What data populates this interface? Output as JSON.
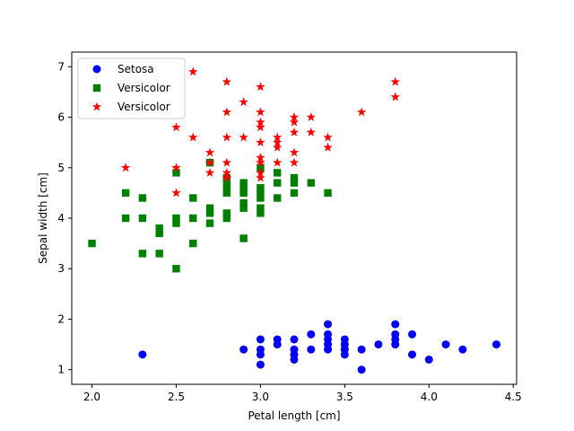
{
  "chart_data": {
    "type": "scatter",
    "xlabel": "Petal length [cm]",
    "ylabel": "Sepal width [cm]",
    "xlim": [
      1.88,
      4.52
    ],
    "ylim": [
      0.71,
      7.29
    ],
    "xticks": [
      2.0,
      2.5,
      3.0,
      3.5,
      4.0,
      4.5
    ],
    "xtick_labels": [
      "2.0",
      "2.5",
      "3.0",
      "3.5",
      "4.0",
      "4.5"
    ],
    "yticks": [
      1,
      2,
      3,
      4,
      5,
      6,
      7
    ],
    "ytick_labels": [
      "1",
      "2",
      "3",
      "4",
      "5",
      "6",
      "7"
    ],
    "grid": false,
    "legend_position": "top-left",
    "series": [
      {
        "name": "Setosa",
        "marker": "circle",
        "color": "#0000ff",
        "points": [
          [
            2.3,
            1.3
          ],
          [
            2.9,
            1.4
          ],
          [
            3.0,
            1.4
          ],
          [
            3.0,
            1.3
          ],
          [
            3.0,
            1.6
          ],
          [
            3.0,
            1.1
          ],
          [
            3.1,
            1.5
          ],
          [
            3.1,
            1.6
          ],
          [
            3.2,
            1.6
          ],
          [
            3.2,
            1.4
          ],
          [
            3.2,
            1.3
          ],
          [
            3.2,
            1.2
          ],
          [
            3.3,
            1.7
          ],
          [
            3.3,
            1.4
          ],
          [
            3.4,
            1.9
          ],
          [
            3.4,
            1.7
          ],
          [
            3.4,
            1.6
          ],
          [
            3.4,
            1.5
          ],
          [
            3.4,
            1.4
          ],
          [
            3.5,
            1.6
          ],
          [
            3.5,
            1.5
          ],
          [
            3.5,
            1.4
          ],
          [
            3.5,
            1.3
          ],
          [
            3.6,
            1.4
          ],
          [
            3.6,
            1.0
          ],
          [
            3.7,
            1.5
          ],
          [
            3.8,
            1.9
          ],
          [
            3.8,
            1.7
          ],
          [
            3.8,
            1.6
          ],
          [
            3.8,
            1.5
          ],
          [
            3.9,
            1.7
          ],
          [
            3.9,
            1.3
          ],
          [
            4.0,
            1.2
          ],
          [
            4.1,
            1.5
          ],
          [
            4.2,
            1.4
          ],
          [
            4.4,
            1.5
          ]
        ]
      },
      {
        "name": "Versicolor",
        "marker": "square",
        "color": "#008000",
        "points": [
          [
            2.0,
            3.5
          ],
          [
            2.2,
            4.5
          ],
          [
            2.2,
            4.0
          ],
          [
            2.3,
            4.4
          ],
          [
            2.3,
            4.0
          ],
          [
            2.3,
            3.3
          ],
          [
            2.4,
            3.8
          ],
          [
            2.4,
            3.7
          ],
          [
            2.4,
            3.3
          ],
          [
            2.5,
            4.9
          ],
          [
            2.5,
            4.0
          ],
          [
            2.5,
            3.9
          ],
          [
            2.5,
            3.0
          ],
          [
            2.6,
            4.4
          ],
          [
            2.6,
            4.0
          ],
          [
            2.6,
            3.5
          ],
          [
            2.7,
            5.1
          ],
          [
            2.7,
            4.2
          ],
          [
            2.7,
            4.1
          ],
          [
            2.7,
            3.9
          ],
          [
            2.8,
            4.8
          ],
          [
            2.8,
            4.7
          ],
          [
            2.8,
            4.6
          ],
          [
            2.8,
            4.5
          ],
          [
            2.8,
            4.1
          ],
          [
            2.8,
            4.0
          ],
          [
            2.9,
            4.7
          ],
          [
            2.9,
            4.6
          ],
          [
            2.9,
            4.5
          ],
          [
            2.9,
            4.3
          ],
          [
            2.9,
            4.2
          ],
          [
            2.9,
            3.6
          ],
          [
            3.0,
            5.0
          ],
          [
            3.0,
            4.6
          ],
          [
            3.0,
            4.5
          ],
          [
            3.0,
            4.4
          ],
          [
            3.0,
            4.2
          ],
          [
            3.0,
            4.1
          ],
          [
            3.1,
            4.9
          ],
          [
            3.1,
            4.7
          ],
          [
            3.1,
            4.4
          ],
          [
            3.2,
            4.8
          ],
          [
            3.2,
            4.7
          ],
          [
            3.2,
            4.5
          ],
          [
            3.3,
            4.7
          ],
          [
            3.4,
            4.5
          ]
        ]
      },
      {
        "name": "Versicolor",
        "marker": "star",
        "color": "#ff0000",
        "points": [
          [
            2.2,
            5.0
          ],
          [
            2.5,
            5.8
          ],
          [
            2.5,
            5.0
          ],
          [
            2.5,
            4.5
          ],
          [
            2.6,
            6.9
          ],
          [
            2.6,
            5.6
          ],
          [
            2.7,
            5.3
          ],
          [
            2.7,
            5.1
          ],
          [
            2.7,
            4.9
          ],
          [
            2.8,
            6.7
          ],
          [
            2.8,
            6.1
          ],
          [
            2.8,
            5.6
          ],
          [
            2.8,
            5.1
          ],
          [
            2.8,
            4.9
          ],
          [
            2.8,
            4.8
          ],
          [
            2.9,
            6.3
          ],
          [
            2.9,
            5.6
          ],
          [
            3.0,
            6.6
          ],
          [
            3.0,
            6.1
          ],
          [
            3.0,
            5.9
          ],
          [
            3.0,
            5.8
          ],
          [
            3.0,
            5.5
          ],
          [
            3.0,
            5.2
          ],
          [
            3.0,
            5.1
          ],
          [
            3.0,
            4.9
          ],
          [
            3.0,
            4.8
          ],
          [
            3.1,
            5.6
          ],
          [
            3.1,
            5.5
          ],
          [
            3.1,
            5.4
          ],
          [
            3.1,
            5.1
          ],
          [
            3.2,
            6.0
          ],
          [
            3.2,
            5.9
          ],
          [
            3.2,
            5.7
          ],
          [
            3.2,
            5.3
          ],
          [
            3.2,
            5.1
          ],
          [
            3.3,
            6.0
          ],
          [
            3.3,
            5.7
          ],
          [
            3.4,
            5.6
          ],
          [
            3.4,
            5.4
          ],
          [
            3.6,
            6.1
          ],
          [
            3.8,
            6.7
          ],
          [
            3.8,
            6.4
          ]
        ]
      }
    ]
  }
}
